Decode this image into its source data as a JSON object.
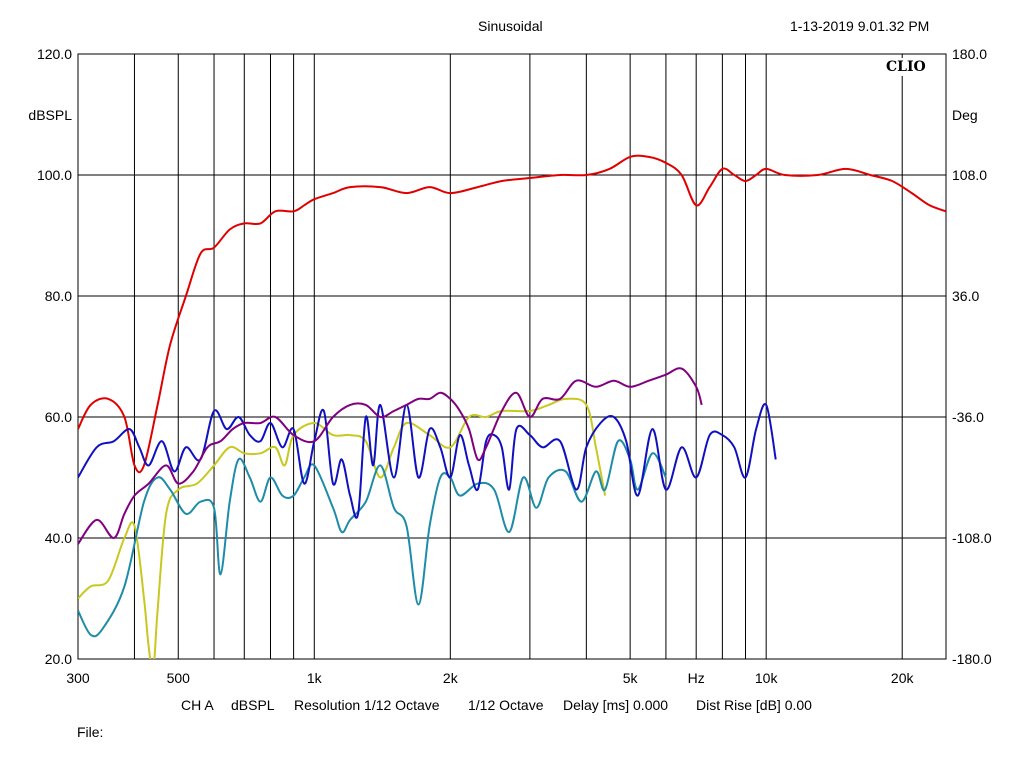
{
  "header": {
    "title": "Sinusoidal",
    "timestamp": "1-13-2019 9.01.32 PM"
  },
  "logo_text": "CLIO",
  "footer": {
    "channel": "CH A",
    "unit": "dBSPL",
    "resolution": "Resolution 1/12 Octave",
    "octave": "1/12 Octave",
    "delay": "Delay [ms] 0.000",
    "dist_rise": "Dist Rise [dB] 0.00",
    "file_label": "File:"
  },
  "chart_data": {
    "type": "line",
    "x_scale": "log",
    "xlim": [
      300,
      25000
    ],
    "ylim": [
      20,
      120
    ],
    "y2lim": [
      -180,
      180
    ],
    "ylabel": "dBSPL",
    "y2label": "Deg",
    "xlabel": "Hz",
    "grid": true,
    "x_tick_labels": [
      {
        "value": 300,
        "label": "300"
      },
      {
        "value": 500,
        "label": "500"
      },
      {
        "value": 1000,
        "label": "1k"
      },
      {
        "value": 2000,
        "label": "2k"
      },
      {
        "value": 5000,
        "label": "5k"
      },
      {
        "value": 10000,
        "label": "10k"
      },
      {
        "value": 20000,
        "label": "20k"
      }
    ],
    "x_unit_label_at": 7000,
    "x_gridlines": [
      400,
      500,
      600,
      700,
      800,
      900,
      1000,
      2000,
      3000,
      4000,
      5000,
      6000,
      7000,
      8000,
      9000,
      10000,
      20000
    ],
    "y_ticks": [
      "120.0",
      "100.0",
      "80.0",
      "60.0",
      "40.0",
      "20.0"
    ],
    "y_tick_values": [
      120,
      100,
      80,
      60,
      40,
      20
    ],
    "y2_ticks": [
      "180.0",
      "108.0",
      "36.0",
      "-36.0",
      "-108.0",
      "-180.0"
    ],
    "series": [
      {
        "color": "#e00000",
        "points": [
          [
            300,
            58
          ],
          [
            320,
            62
          ],
          [
            350,
            63
          ],
          [
            380,
            60
          ],
          [
            400,
            52
          ],
          [
            420,
            52
          ],
          [
            450,
            62
          ],
          [
            480,
            72
          ],
          [
            520,
            80
          ],
          [
            560,
            87
          ],
          [
            600,
            88
          ],
          [
            650,
            91
          ],
          [
            700,
            92
          ],
          [
            760,
            92
          ],
          [
            820,
            94
          ],
          [
            900,
            94
          ],
          [
            950,
            95
          ],
          [
            1000,
            96
          ],
          [
            1100,
            97
          ],
          [
            1200,
            98
          ],
          [
            1400,
            98
          ],
          [
            1600,
            97
          ],
          [
            1800,
            98
          ],
          [
            2000,
            97
          ],
          [
            2300,
            98
          ],
          [
            2600,
            99
          ],
          [
            3000,
            99.5
          ],
          [
            3500,
            100
          ],
          [
            4000,
            100
          ],
          [
            4500,
            101
          ],
          [
            5000,
            103
          ],
          [
            5500,
            103
          ],
          [
            6000,
            102
          ],
          [
            6500,
            100
          ],
          [
            7000,
            95
          ],
          [
            7500,
            98
          ],
          [
            8000,
            101
          ],
          [
            8500,
            100
          ],
          [
            9000,
            99
          ],
          [
            9500,
            100
          ],
          [
            10000,
            101
          ],
          [
            11000,
            100
          ],
          [
            13000,
            100
          ],
          [
            15000,
            101
          ],
          [
            17000,
            100
          ],
          [
            19000,
            99
          ],
          [
            21000,
            97
          ],
          [
            23000,
            95
          ],
          [
            25000,
            94
          ]
        ]
      },
      {
        "color": "#c8c820",
        "points": [
          [
            300,
            30
          ],
          [
            320,
            32
          ],
          [
            350,
            33
          ],
          [
            380,
            40
          ],
          [
            400,
            42
          ],
          [
            420,
            30
          ],
          [
            430,
            22
          ],
          [
            440,
            18
          ],
          [
            450,
            28
          ],
          [
            470,
            44
          ],
          [
            500,
            48
          ],
          [
            550,
            49
          ],
          [
            600,
            52
          ],
          [
            650,
            55
          ],
          [
            700,
            54
          ],
          [
            760,
            54
          ],
          [
            820,
            55
          ],
          [
            860,
            52
          ],
          [
            900,
            57
          ],
          [
            1000,
            59
          ],
          [
            1100,
            57
          ],
          [
            1200,
            57
          ],
          [
            1300,
            56
          ],
          [
            1400,
            50
          ],
          [
            1500,
            55
          ],
          [
            1600,
            59
          ],
          [
            1800,
            57
          ],
          [
            2000,
            55
          ],
          [
            2200,
            60
          ],
          [
            2400,
            60
          ],
          [
            2600,
            61
          ],
          [
            3000,
            61
          ],
          [
            3300,
            62
          ],
          [
            3600,
            63
          ],
          [
            4000,
            62
          ],
          [
            4200,
            55
          ],
          [
            4400,
            47
          ]
        ]
      },
      {
        "color": "#1e8ca8",
        "points": [
          [
            300,
            28
          ],
          [
            320,
            24
          ],
          [
            340,
            25
          ],
          [
            380,
            32
          ],
          [
            420,
            46
          ],
          [
            450,
            50
          ],
          [
            480,
            48
          ],
          [
            520,
            44
          ],
          [
            560,
            46
          ],
          [
            600,
            45
          ],
          [
            620,
            34
          ],
          [
            650,
            46
          ],
          [
            680,
            53
          ],
          [
            720,
            50
          ],
          [
            760,
            46
          ],
          [
            800,
            50
          ],
          [
            850,
            47
          ],
          [
            900,
            47
          ],
          [
            950,
            50
          ],
          [
            1000,
            52
          ],
          [
            1100,
            45
          ],
          [
            1150,
            41
          ],
          [
            1200,
            43
          ],
          [
            1300,
            46
          ],
          [
            1400,
            52
          ],
          [
            1500,
            45
          ],
          [
            1600,
            42
          ],
          [
            1700,
            29
          ],
          [
            1800,
            42
          ],
          [
            1900,
            50
          ],
          [
            2000,
            50
          ],
          [
            2100,
            47
          ],
          [
            2300,
            49
          ],
          [
            2500,
            48
          ],
          [
            2700,
            41
          ],
          [
            2900,
            50
          ],
          [
            3100,
            45
          ],
          [
            3300,
            50
          ],
          [
            3600,
            51
          ],
          [
            3900,
            46
          ],
          [
            4200,
            51
          ],
          [
            4400,
            48
          ],
          [
            4700,
            56
          ],
          [
            5000,
            53
          ],
          [
            5200,
            48
          ],
          [
            5600,
            54
          ],
          [
            6000,
            50
          ]
        ]
      },
      {
        "color": "#1010c0",
        "points": [
          [
            300,
            50
          ],
          [
            330,
            55
          ],
          [
            360,
            56
          ],
          [
            390,
            58
          ],
          [
            410,
            55
          ],
          [
            430,
            52
          ],
          [
            460,
            56
          ],
          [
            490,
            51
          ],
          [
            520,
            55
          ],
          [
            560,
            53
          ],
          [
            600,
            61
          ],
          [
            640,
            58
          ],
          [
            680,
            60
          ],
          [
            720,
            57
          ],
          [
            760,
            56
          ],
          [
            800,
            59
          ],
          [
            850,
            55
          ],
          [
            900,
            58
          ],
          [
            950,
            49
          ],
          [
            1000,
            56
          ],
          [
            1050,
            61
          ],
          [
            1100,
            49
          ],
          [
            1150,
            53
          ],
          [
            1200,
            47
          ],
          [
            1250,
            44
          ],
          [
            1300,
            60
          ],
          [
            1350,
            52
          ],
          [
            1400,
            62
          ],
          [
            1500,
            50
          ],
          [
            1600,
            62
          ],
          [
            1700,
            50
          ],
          [
            1800,
            58
          ],
          [
            1900,
            55
          ],
          [
            2000,
            50
          ],
          [
            2100,
            57
          ],
          [
            2200,
            52
          ],
          [
            2300,
            48
          ],
          [
            2400,
            56
          ],
          [
            2500,
            57
          ],
          [
            2600,
            55
          ],
          [
            2700,
            48
          ],
          [
            2800,
            58
          ],
          [
            3000,
            57
          ],
          [
            3200,
            55
          ],
          [
            3500,
            56
          ],
          [
            3800,
            48
          ],
          [
            4000,
            55
          ],
          [
            4300,
            59
          ],
          [
            4600,
            60
          ],
          [
            4900,
            56
          ],
          [
            5200,
            47
          ],
          [
            5600,
            58
          ],
          [
            6000,
            48
          ],
          [
            6500,
            55
          ],
          [
            7000,
            50
          ],
          [
            7500,
            57
          ],
          [
            8000,
            57
          ],
          [
            8500,
            55
          ],
          [
            9000,
            50
          ],
          [
            9500,
            58
          ],
          [
            10000,
            62
          ],
          [
            10500,
            53
          ]
        ]
      },
      {
        "color": "#800080",
        "points": [
          [
            300,
            39
          ],
          [
            330,
            43
          ],
          [
            360,
            40
          ],
          [
            380,
            44
          ],
          [
            400,
            47
          ],
          [
            430,
            49
          ],
          [
            470,
            52
          ],
          [
            500,
            49
          ],
          [
            540,
            51
          ],
          [
            580,
            55
          ],
          [
            620,
            56
          ],
          [
            660,
            58
          ],
          [
            700,
            59
          ],
          [
            760,
            59
          ],
          [
            820,
            60
          ],
          [
            900,
            57
          ],
          [
            1000,
            56
          ],
          [
            1100,
            60
          ],
          [
            1200,
            62
          ],
          [
            1300,
            62
          ],
          [
            1400,
            60
          ],
          [
            1500,
            61
          ],
          [
            1600,
            62
          ],
          [
            1700,
            63
          ],
          [
            1800,
            63
          ],
          [
            1900,
            64
          ],
          [
            2000,
            63
          ],
          [
            2100,
            61
          ],
          [
            2200,
            58
          ],
          [
            2300,
            53
          ],
          [
            2400,
            55
          ],
          [
            2600,
            61
          ],
          [
            2800,
            64
          ],
          [
            3000,
            60
          ],
          [
            3200,
            63
          ],
          [
            3500,
            63
          ],
          [
            3800,
            66
          ],
          [
            4200,
            65
          ],
          [
            4600,
            66
          ],
          [
            5000,
            65
          ],
          [
            5500,
            66
          ],
          [
            6000,
            67
          ],
          [
            6500,
            68
          ],
          [
            7000,
            65
          ],
          [
            7200,
            62
          ]
        ]
      }
    ]
  }
}
